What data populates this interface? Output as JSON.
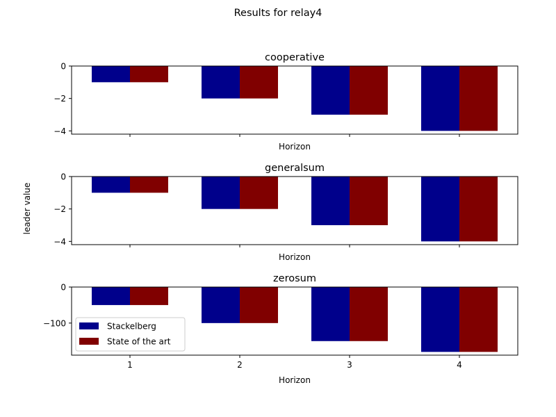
{
  "figure": {
    "suptitle": "Results for relay4",
    "shared_ylabel": "leader value"
  },
  "colors": {
    "series_1": "#00008b",
    "series_2": "#800000"
  },
  "chart_data": [
    {
      "type": "bar",
      "title": "cooperative",
      "xlabel": "Horizon",
      "categories": [
        "1",
        "2",
        "3",
        "4"
      ],
      "show_xticklabels": false,
      "series": [
        {
          "name": "Stackelberg",
          "values": [
            -1,
            -2,
            -3,
            -4
          ]
        },
        {
          "name": "State of the art",
          "values": [
            -1,
            -2,
            -3,
            -4
          ]
        }
      ],
      "ylim": [
        -4.2,
        0
      ],
      "yticks": [
        0,
        -2,
        -4
      ],
      "yticklabels": [
        "0",
        "−2",
        "−4"
      ],
      "grid": false
    },
    {
      "type": "bar",
      "title": "generalsum",
      "xlabel": "Horizon",
      "categories": [
        "1",
        "2",
        "3",
        "4"
      ],
      "show_xticklabels": false,
      "series": [
        {
          "name": "Stackelberg",
          "values": [
            -1,
            -2,
            -3,
            -4
          ]
        },
        {
          "name": "State of the art",
          "values": [
            -1,
            -2,
            -3,
            -4
          ]
        }
      ],
      "ylim": [
        -4.2,
        0
      ],
      "yticks": [
        0,
        -2,
        -4
      ],
      "yticklabels": [
        "0",
        "−2",
        "−4"
      ],
      "grid": false
    },
    {
      "type": "bar",
      "title": "zerosum",
      "xlabel": "Horizon",
      "categories": [
        "1",
        "2",
        "3",
        "4"
      ],
      "show_xticklabels": true,
      "series": [
        {
          "name": "Stackelberg",
          "values": [
            -50,
            -100,
            -150,
            -180
          ]
        },
        {
          "name": "State of the art",
          "values": [
            -50,
            -100,
            -150,
            -180
          ]
        }
      ],
      "ylim": [
        -189,
        0
      ],
      "yticks": [
        0,
        -100
      ],
      "yticklabels": [
        "0",
        "−100"
      ],
      "grid": false,
      "legend": {
        "placement": "lower-left",
        "entries": [
          "Stackelberg",
          "State of the art"
        ]
      }
    }
  ]
}
